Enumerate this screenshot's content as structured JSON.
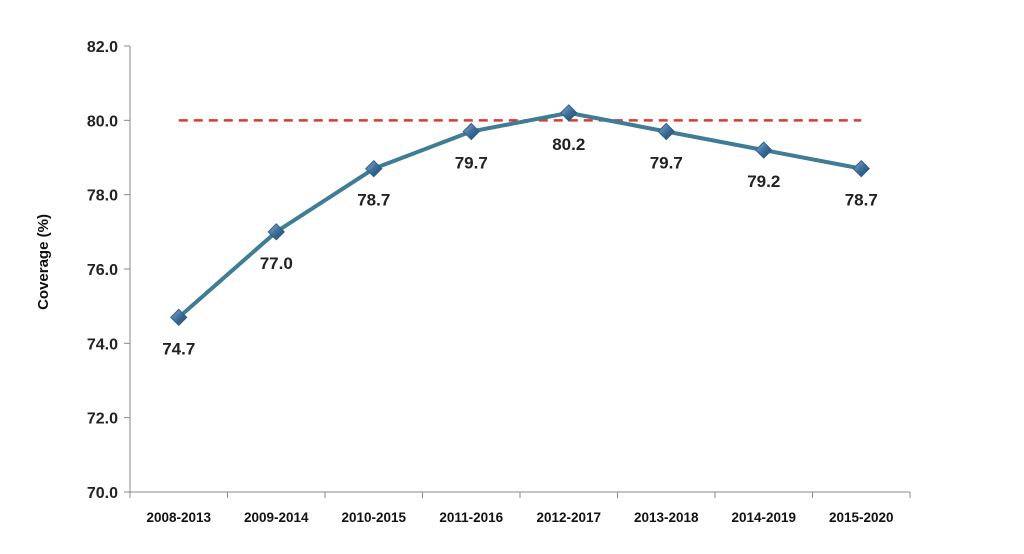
{
  "chart_data": {
    "type": "line",
    "title": "",
    "xlabel": "",
    "ylabel": "Coverage (%)",
    "ylim": [
      70,
      82
    ],
    "yticks": [
      "70.0",
      "72.0",
      "74.0",
      "76.0",
      "78.0",
      "80.0",
      "82.0"
    ],
    "categories": [
      "2008-2013",
      "2009-2014",
      "2010-2015",
      "2011-2016",
      "2012-2017",
      "2013-2018",
      "2014-2019",
      "2015-2020"
    ],
    "series": [
      {
        "values": [
          74.7,
          77.0,
          78.7,
          79.7,
          80.2,
          79.7,
          79.2,
          78.7
        ],
        "data_labels": [
          "74.7",
          "77.0",
          "78.7",
          "79.7",
          "80.2",
          "79.7",
          "79.2",
          "78.7"
        ],
        "label_position": [
          "below",
          "below",
          "below",
          "below",
          "below",
          "below",
          "below",
          "below"
        ],
        "color": "#3f7c96",
        "marker": "diamond",
        "marker_color": "#2e5f86"
      }
    ],
    "reference_line": {
      "value": 80.0,
      "color": "#d93a32",
      "style": "dashed"
    },
    "grid": false,
    "legend": "none"
  }
}
